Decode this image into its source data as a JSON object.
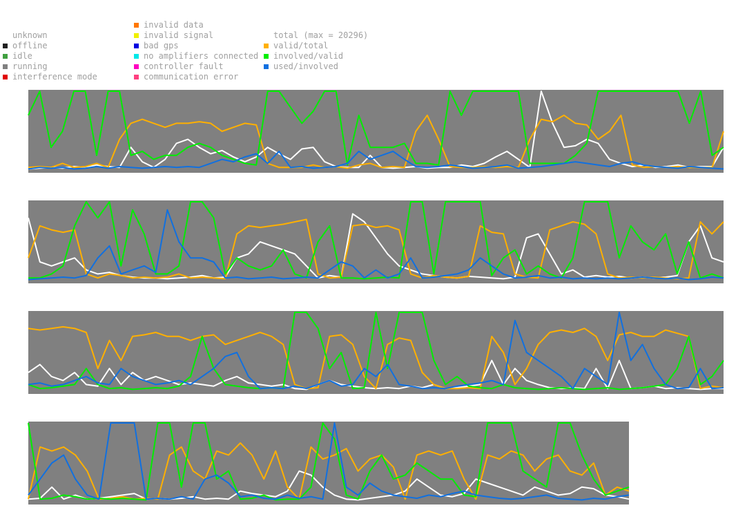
{
  "legend": {
    "status_col1": [
      {
        "label": "unknown",
        "color": ""
      },
      {
        "label": "offline",
        "color": "#202020"
      },
      {
        "label": "idle",
        "color": "#40a040"
      },
      {
        "label": "running",
        "color": "#808080"
      },
      {
        "label": "interference mode",
        "color": "#e00000"
      }
    ],
    "status_col2": [
      {
        "label": "invalid data",
        "color": "#ff7700"
      },
      {
        "label": "invalid signal",
        "color": "#f0f000"
      },
      {
        "label": "bad gps",
        "color": "#0000e0"
      },
      {
        "label": "no amplifiers connected",
        "color": "#00e8e8"
      },
      {
        "label": "controller fault",
        "color": "#ff00c0"
      },
      {
        "label": "communication error",
        "color": "#ff4080"
      }
    ],
    "series_col": [
      {
        "label": "total (max = 20296)",
        "color": ""
      },
      {
        "label": "valid/total",
        "color": "#ffb000"
      },
      {
        "label": "involved/valid",
        "color": "#00ee00"
      },
      {
        "label": "used/involved",
        "color": "#1070e0"
      }
    ]
  },
  "chart_data": {
    "type": "line",
    "background_status": "running",
    "colors": {
      "background": "#808080",
      "total": "#ffffff",
      "valid_total": "#ffb000",
      "involved_valid": "#00ee00",
      "used_involved": "#1070e0"
    },
    "ylim": [
      0,
      1
    ],
    "total_max": 20296,
    "panels": [
      {
        "total": [
          0.03,
          0.04,
          0.05,
          0.04,
          0.06,
          0.05,
          0.08,
          0.06,
          0.05,
          0.3,
          0.12,
          0.05,
          0.15,
          0.35,
          0.4,
          0.3,
          0.22,
          0.26,
          0.18,
          0.12,
          0.18,
          0.3,
          0.22,
          0.15,
          0.28,
          0.3,
          0.12,
          0.06,
          0.05,
          0.05,
          0.2,
          0.05,
          0.04,
          0.05,
          0.06,
          0.04,
          0.05,
          0.05,
          0.08,
          0.06,
          0.1,
          0.18,
          0.25,
          0.15,
          0.05,
          1.0,
          0.6,
          0.3,
          0.32,
          0.4,
          0.35,
          0.15,
          0.1,
          0.06,
          0.08,
          0.05,
          0.06,
          0.08,
          0.05,
          0.06,
          0.06,
          0.3
        ],
        "valid_total": [
          0.05,
          0.06,
          0.05,
          0.1,
          0.05,
          0.06,
          0.1,
          0.05,
          0.4,
          0.6,
          0.65,
          0.6,
          0.55,
          0.6,
          0.6,
          0.62,
          0.6,
          0.5,
          0.55,
          0.6,
          0.58,
          0.1,
          0.05,
          0.05,
          0.05,
          0.08,
          0.05,
          0.06,
          0.04,
          0.08,
          0.1,
          0.05,
          0.06,
          0.05,
          0.5,
          0.7,
          0.4,
          0.06,
          0.05,
          0.05,
          0.06,
          0.05,
          0.06,
          0.05,
          0.4,
          0.65,
          0.62,
          0.7,
          0.6,
          0.58,
          0.4,
          0.5,
          0.7,
          0.08,
          0.05,
          0.06,
          0.05,
          0.06,
          0.05,
          0.05,
          0.05,
          0.5
        ],
        "involved_valid": [
          0.7,
          1.0,
          0.3,
          0.5,
          1.0,
          1.0,
          0.2,
          1.0,
          1.0,
          0.2,
          0.25,
          0.15,
          0.2,
          0.2,
          0.3,
          0.35,
          0.3,
          0.2,
          0.15,
          0.1,
          0.08,
          1.0,
          1.0,
          0.8,
          0.6,
          0.75,
          1.0,
          1.0,
          0.08,
          0.7,
          0.3,
          0.3,
          0.3,
          0.35,
          0.1,
          0.1,
          0.08,
          1.0,
          0.7,
          1.0,
          1.0,
          1.0,
          1.0,
          1.0,
          0.1,
          0.1,
          0.1,
          0.1,
          0.2,
          0.35,
          1.0,
          1.0,
          1.0,
          1.0,
          1.0,
          1.0,
          1.0,
          1.0,
          0.6,
          1.0,
          0.2,
          0.3
        ],
        "used_involved": [
          0.03,
          0.05,
          0.04,
          0.05,
          0.03,
          0.04,
          0.06,
          0.04,
          0.06,
          0.05,
          0.04,
          0.05,
          0.06,
          0.05,
          0.06,
          0.05,
          0.1,
          0.15,
          0.12,
          0.18,
          0.22,
          0.1,
          0.25,
          0.05,
          0.06,
          0.04,
          0.05,
          0.06,
          0.1,
          0.25,
          0.15,
          0.2,
          0.25,
          0.15,
          0.06,
          0.05,
          0.06,
          0.08,
          0.06,
          0.04,
          0.05,
          0.06,
          0.08,
          0.04,
          0.05,
          0.06,
          0.08,
          0.1,
          0.12,
          0.1,
          0.08,
          0.06,
          0.1,
          0.12,
          0.08,
          0.06,
          0.05,
          0.04,
          0.06,
          0.05,
          0.04,
          0.03
        ]
      },
      {
        "total": [
          0.8,
          0.25,
          0.2,
          0.25,
          0.3,
          0.15,
          0.1,
          0.12,
          0.08,
          0.06,
          0.05,
          0.05,
          0.04,
          0.05,
          0.06,
          0.08,
          0.05,
          0.06,
          0.3,
          0.35,
          0.5,
          0.45,
          0.4,
          0.35,
          0.2,
          0.05,
          0.08,
          0.06,
          0.85,
          0.75,
          0.55,
          0.35,
          0.2,
          0.15,
          0.1,
          0.08,
          0.06,
          0.05,
          0.07,
          0.06,
          0.05,
          0.04,
          0.06,
          0.55,
          0.6,
          0.35,
          0.1,
          0.15,
          0.06,
          0.08,
          0.06,
          0.07,
          0.05,
          0.06,
          0.05,
          0.06,
          0.08,
          0.5,
          0.7,
          0.3,
          0.25
        ],
        "valid_total": [
          0.3,
          0.7,
          0.65,
          0.62,
          0.65,
          0.1,
          0.05,
          0.1,
          0.08,
          0.05,
          0.06,
          0.05,
          0.06,
          0.1,
          0.05,
          0.06,
          0.05,
          0.04,
          0.6,
          0.7,
          0.68,
          0.7,
          0.72,
          0.75,
          0.78,
          0.1,
          0.05,
          0.06,
          0.7,
          0.72,
          0.68,
          0.7,
          0.65,
          0.1,
          0.05,
          0.08,
          0.06,
          0.05,
          0.07,
          0.7,
          0.62,
          0.6,
          0.1,
          0.06,
          0.05,
          0.65,
          0.7,
          0.75,
          0.72,
          0.6,
          0.1,
          0.05,
          0.06,
          0.05,
          0.06,
          0.05,
          0.04,
          0.05,
          0.75,
          0.6,
          0.75
        ],
        "involved_valid": [
          0.05,
          0.05,
          0.1,
          0.2,
          0.7,
          1.0,
          0.8,
          1.0,
          0.2,
          0.9,
          0.6,
          0.1,
          0.1,
          0.2,
          1.0,
          1.0,
          0.8,
          0.1,
          0.3,
          0.2,
          0.15,
          0.2,
          0.4,
          0.1,
          0.05,
          0.5,
          0.7,
          0.05,
          0.05,
          0.04,
          0.05,
          0.06,
          0.05,
          1.0,
          1.0,
          0.1,
          1.0,
          1.0,
          1.0,
          1.0,
          0.08,
          0.3,
          0.4,
          0.1,
          0.2,
          0.1,
          0.05,
          0.3,
          1.0,
          1.0,
          1.0,
          0.3,
          0.7,
          0.5,
          0.4,
          0.6,
          0.1,
          0.5,
          0.05,
          0.1,
          0.05
        ],
        "used_involved": [
          0.03,
          0.04,
          0.05,
          0.06,
          0.05,
          0.08,
          0.3,
          0.45,
          0.1,
          0.15,
          0.2,
          0.12,
          0.9,
          0.5,
          0.3,
          0.3,
          0.25,
          0.05,
          0.06,
          0.04,
          0.05,
          0.06,
          0.04,
          0.05,
          0.06,
          0.05,
          0.15,
          0.25,
          0.2,
          0.05,
          0.15,
          0.05,
          0.1,
          0.3,
          0.05,
          0.06,
          0.08,
          0.1,
          0.15,
          0.3,
          0.2,
          0.1,
          0.05,
          0.06,
          0.08,
          0.05,
          0.06,
          0.04,
          0.05,
          0.04,
          0.05,
          0.04,
          0.05,
          0.06,
          0.05,
          0.04,
          0.05,
          0.03,
          0.04,
          0.06,
          0.05
        ]
      },
      {
        "total": [
          0.25,
          0.35,
          0.2,
          0.15,
          0.25,
          0.1,
          0.08,
          0.3,
          0.1,
          0.25,
          0.15,
          0.2,
          0.15,
          0.1,
          0.12,
          0.1,
          0.08,
          0.15,
          0.2,
          0.12,
          0.1,
          0.08,
          0.1,
          0.05,
          0.04,
          0.1,
          0.15,
          0.1,
          0.08,
          0.06,
          0.05,
          0.06,
          0.05,
          0.08,
          0.06,
          0.1,
          0.05,
          0.06,
          0.08,
          0.1,
          0.4,
          0.1,
          0.3,
          0.15,
          0.1,
          0.06,
          0.05,
          0.06,
          0.05,
          0.3,
          0.05,
          0.4,
          0.05,
          0.06,
          0.08,
          0.05,
          0.06,
          0.05,
          0.04,
          0.05,
          0.05
        ],
        "valid_total": [
          0.8,
          0.78,
          0.8,
          0.82,
          0.8,
          0.75,
          0.3,
          0.65,
          0.4,
          0.7,
          0.72,
          0.75,
          0.7,
          0.7,
          0.65,
          0.7,
          0.72,
          0.6,
          0.65,
          0.7,
          0.75,
          0.7,
          0.6,
          0.1,
          0.05,
          0.06,
          0.7,
          0.72,
          0.6,
          0.2,
          0.05,
          0.6,
          0.68,
          0.65,
          0.25,
          0.1,
          0.05,
          0.05,
          0.06,
          0.05,
          0.7,
          0.5,
          0.1,
          0.3,
          0.6,
          0.75,
          0.78,
          0.75,
          0.8,
          0.7,
          0.4,
          0.72,
          0.75,
          0.7,
          0.7,
          0.78,
          0.74,
          0.7,
          0.05,
          0.08,
          0.06
        ],
        "involved_valid": [
          0.1,
          0.05,
          0.06,
          0.08,
          0.1,
          0.3,
          0.1,
          0.05,
          0.06,
          0.04,
          0.05,
          0.06,
          0.05,
          0.08,
          0.2,
          0.7,
          0.3,
          0.1,
          0.08,
          0.06,
          0.05,
          0.06,
          0.05,
          1.0,
          1.0,
          0.8,
          0.3,
          0.5,
          0.05,
          0.06,
          1.0,
          0.3,
          1.0,
          1.0,
          1.0,
          0.4,
          0.1,
          0.2,
          0.08,
          0.06,
          0.05,
          0.1,
          0.06,
          0.05,
          0.04,
          0.05,
          0.06,
          0.05,
          0.04,
          0.05,
          0.06,
          0.04,
          0.05,
          0.06,
          0.08,
          0.1,
          0.3,
          0.7,
          0.1,
          0.2,
          0.4
        ],
        "used_involved": [
          0.1,
          0.12,
          0.08,
          0.1,
          0.15,
          0.2,
          0.12,
          0.1,
          0.3,
          0.2,
          0.15,
          0.1,
          0.12,
          0.15,
          0.1,
          0.2,
          0.3,
          0.45,
          0.5,
          0.2,
          0.05,
          0.06,
          0.05,
          0.08,
          0.05,
          0.1,
          0.15,
          0.08,
          0.1,
          0.3,
          0.2,
          0.35,
          0.1,
          0.08,
          0.05,
          0.06,
          0.05,
          0.08,
          0.1,
          0.12,
          0.15,
          0.1,
          0.9,
          0.5,
          0.4,
          0.3,
          0.2,
          0.05,
          0.3,
          0.2,
          0.1,
          1.0,
          0.4,
          0.6,
          0.3,
          0.1,
          0.05,
          0.06,
          0.3,
          0.05,
          0.06
        ]
      },
      {
        "total": [
          0.05,
          0.06,
          0.2,
          0.05,
          0.1,
          0.05,
          0.06,
          0.08,
          0.1,
          0.12,
          0.05,
          0.06,
          0.05,
          0.06,
          0.08,
          0.05,
          0.06,
          0.05,
          0.15,
          0.12,
          0.1,
          0.08,
          0.15,
          0.4,
          0.35,
          0.2,
          0.1,
          0.05,
          0.04,
          0.06,
          0.08,
          0.1,
          0.15,
          0.3,
          0.2,
          0.1,
          0.08,
          0.12,
          0.3,
          0.25,
          0.2,
          0.15,
          0.1,
          0.2,
          0.15,
          0.1,
          0.12,
          0.2,
          0.18,
          0.1,
          0.08,
          0.05
        ],
        "valid_total": [
          0.05,
          0.7,
          0.65,
          0.7,
          0.6,
          0.4,
          0.05,
          0.06,
          0.08,
          0.05,
          0.06,
          0.05,
          0.6,
          0.7,
          0.4,
          0.3,
          0.65,
          0.6,
          0.75,
          0.6,
          0.3,
          0.65,
          0.2,
          0.05,
          0.7,
          0.55,
          0.6,
          0.68,
          0.4,
          0.55,
          0.6,
          0.45,
          0.05,
          0.6,
          0.65,
          0.6,
          0.65,
          0.3,
          0.05,
          0.6,
          0.55,
          0.65,
          0.6,
          0.4,
          0.55,
          0.6,
          0.4,
          0.35,
          0.5,
          0.1,
          0.2,
          0.15
        ],
        "involved_valid": [
          1.0,
          0.05,
          0.06,
          0.1,
          0.08,
          0.05,
          0.06,
          0.05,
          0.06,
          0.05,
          0.04,
          1.0,
          1.0,
          0.2,
          1.0,
          1.0,
          0.3,
          0.4,
          0.05,
          0.06,
          0.1,
          0.04,
          0.05,
          0.05,
          0.2,
          1.0,
          0.8,
          0.1,
          0.05,
          0.4,
          0.6,
          0.3,
          0.35,
          0.5,
          0.4,
          0.3,
          0.3,
          0.1,
          0.08,
          1.0,
          1.0,
          1.0,
          0.4,
          0.3,
          0.2,
          1.0,
          1.0,
          0.6,
          0.3,
          0.1,
          0.15,
          0.2
        ],
        "used_involved": [
          0.1,
          0.3,
          0.5,
          0.6,
          0.3,
          0.1,
          0.05,
          1.0,
          1.0,
          1.0,
          0.05,
          0.06,
          0.05,
          0.08,
          0.05,
          0.3,
          0.35,
          0.25,
          0.08,
          0.1,
          0.06,
          0.05,
          0.1,
          0.06,
          0.08,
          0.05,
          1.0,
          0.2,
          0.1,
          0.25,
          0.15,
          0.1,
          0.08,
          0.06,
          0.1,
          0.08,
          0.12,
          0.15,
          0.1,
          0.08,
          0.06,
          0.05,
          0.06,
          0.08,
          0.1,
          0.06,
          0.05,
          0.04,
          0.06,
          0.05,
          0.08,
          0.1
        ]
      }
    ]
  }
}
